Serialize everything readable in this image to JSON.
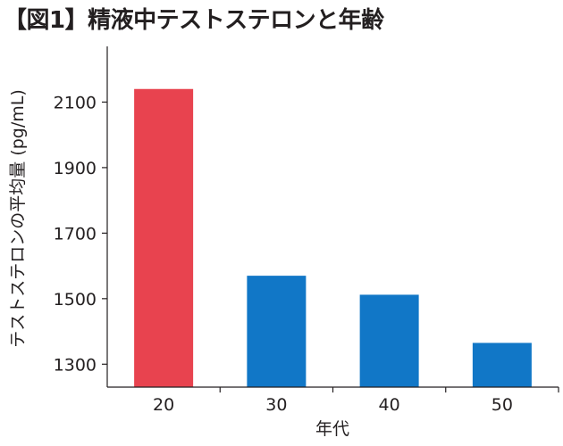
{
  "title": "【図1】精液中テストステロンと年齢",
  "chart_data": {
    "type": "bar",
    "title": "【図1】精液中テストステロンと年齢",
    "xlabel": "年代",
    "ylabel": "テストステロンの平均量 (pg/mL)",
    "categories": [
      "20",
      "30",
      "40",
      "50"
    ],
    "values": [
      2140,
      1570,
      1512,
      1365
    ],
    "colors": [
      "#e8434f",
      "#1177c7",
      "#1177c7",
      "#1177c7"
    ],
    "ylim": [
      1230,
      2270
    ],
    "yticks": [
      1300,
      1500,
      1700,
      1900,
      2100
    ],
    "ytick_labels": [
      "1300",
      "1500",
      "1700",
      "1900",
      "2100"
    ],
    "grid": false,
    "legend": "none"
  }
}
